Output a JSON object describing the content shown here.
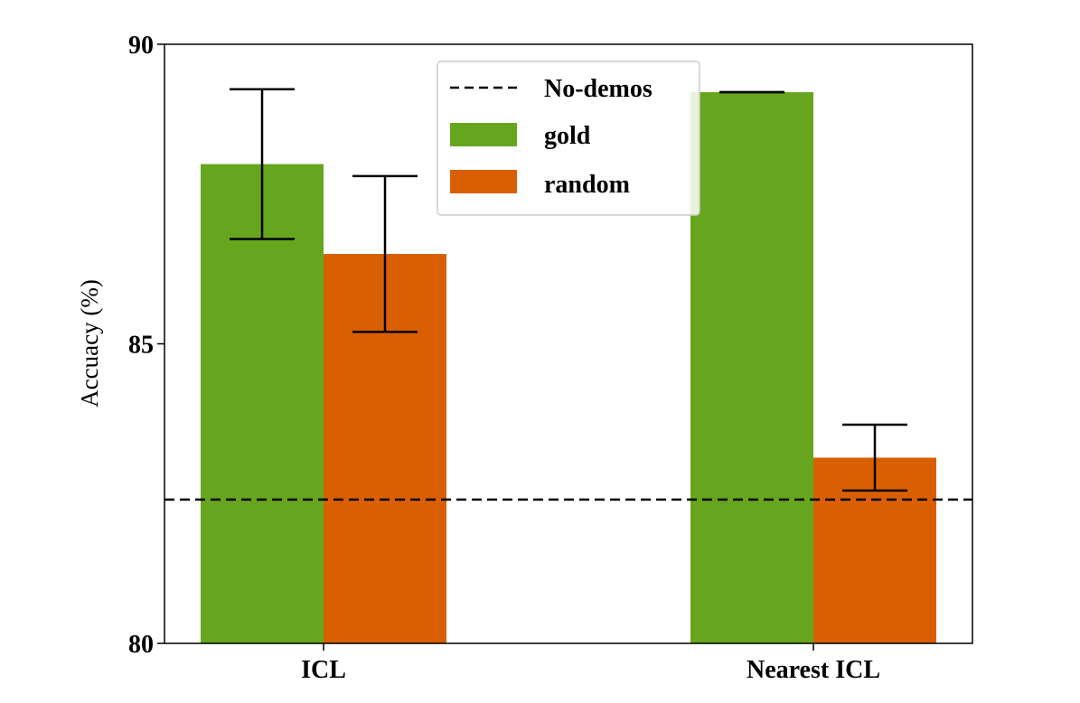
{
  "chart_data": {
    "type": "bar",
    "categories": [
      "ICL",
      "Nearest ICL"
    ],
    "series": [
      {
        "name": "gold",
        "color": "#66a61e",
        "values": [
          88.0,
          89.2
        ],
        "errors": [
          1.25,
          0.0
        ]
      },
      {
        "name": "random",
        "color": "#d95f02",
        "values": [
          86.5,
          83.1
        ],
        "errors": [
          1.3,
          0.55
        ]
      }
    ],
    "reference_line": {
      "name": "No-demos",
      "value": 82.4,
      "style": "dashed",
      "color": "#000000"
    },
    "title": "",
    "xlabel": "",
    "ylabel": "Accuacy (%)",
    "ylim": [
      80,
      90
    ],
    "yticks": [
      80,
      85,
      90
    ],
    "grid": false,
    "legend_position": "top-center"
  }
}
